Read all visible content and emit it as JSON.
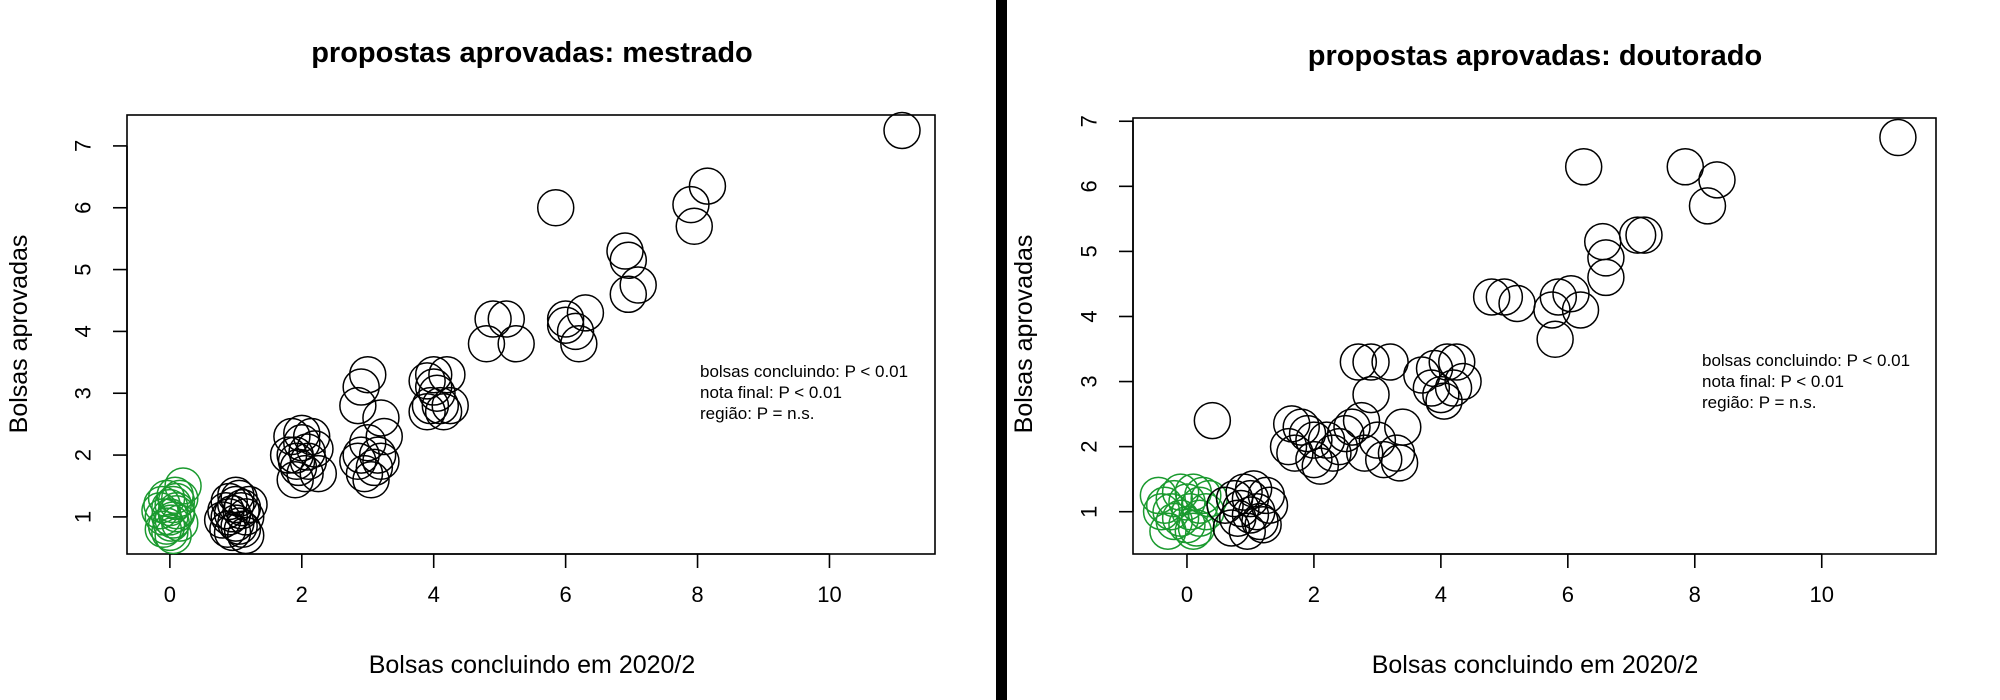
{
  "colors": {
    "group_zero": "#1a9a2e",
    "group_other": "#000000",
    "divider": "#000000"
  },
  "chart_data": [
    {
      "type": "scatter",
      "title": "propostas aprovadas: mestrado",
      "xlabel": "Bolsas concluindo em 2020/2",
      "ylabel": "Bolsas aprovadas",
      "xlim": [
        -0.65,
        11.6
      ],
      "ylim": [
        0.4,
        7.5
      ],
      "xticks": [
        0,
        2,
        4,
        6,
        8,
        10
      ],
      "xtick_labels": [
        "0",
        "2",
        "4",
        "6",
        "8",
        "10"
      ],
      "yticks": [
        1,
        2,
        3,
        4,
        5,
        6,
        7
      ],
      "ytick_labels": [
        "1",
        "2",
        "3",
        "4",
        "5",
        "6",
        "7"
      ],
      "grid": false,
      "annotations": [
        "bolsas concluindo: P < 0.01",
        "nota final: P < 0.01",
        "região: P = n.s."
      ],
      "series": [
        {
          "color": "green",
          "points": [
            [
              0,
              1.0
            ],
            [
              0.05,
              1.2
            ],
            [
              -0.1,
              0.8
            ],
            [
              0.1,
              1.05
            ],
            [
              -0.05,
              1.3
            ],
            [
              0.15,
              0.9
            ],
            [
              0,
              0.75
            ],
            [
              -0.15,
              1.1
            ],
            [
              0.05,
              0.95
            ],
            [
              0.1,
              1.25
            ],
            [
              -0.1,
              1.0
            ],
            [
              0,
              1.15
            ],
            [
              0.15,
              1.3
            ],
            [
              0.2,
              1.5
            ],
            [
              -0.05,
              0.85
            ],
            [
              0.05,
              0.7
            ],
            [
              0.1,
              1.1
            ],
            [
              -0.12,
              1.2
            ],
            [
              0.02,
              0.9
            ],
            [
              0.08,
              1.35
            ]
          ]
        },
        {
          "color": "black",
          "points": [
            [
              0.9,
              1.0
            ],
            [
              1.0,
              1.2
            ],
            [
              1.1,
              0.8
            ],
            [
              0.95,
              0.75
            ],
            [
              1.05,
              1.3
            ],
            [
              0.85,
              1.1
            ],
            [
              1.15,
              1.0
            ],
            [
              1.0,
              0.9
            ],
            [
              0.9,
              1.25
            ],
            [
              1.1,
              1.15
            ],
            [
              1.05,
              0.85
            ],
            [
              0.95,
              1.05
            ],
            [
              1.2,
              1.2
            ],
            [
              0.8,
              0.95
            ],
            [
              1.0,
              1.35
            ],
            [
              1.15,
              0.7
            ],
            [
              0.88,
              0.8
            ],
            [
              1.08,
              1.1
            ],
            [
              1.9,
              2.0
            ],
            [
              2.0,
              2.2
            ],
            [
              1.95,
              1.8
            ],
            [
              2.1,
              1.9
            ],
            [
              1.85,
              2.3
            ],
            [
              2.05,
              1.7
            ],
            [
              2.2,
              2.1
            ],
            [
              1.9,
              1.6
            ],
            [
              2.15,
              2.3
            ],
            [
              1.8,
              2.0
            ],
            [
              2.25,
              1.7
            ],
            [
              2.0,
              2.35
            ],
            [
              1.92,
              1.9
            ],
            [
              2.08,
              2.05
            ],
            [
              2.9,
              3.1
            ],
            [
              3.0,
              3.3
            ],
            [
              2.85,
              2.8
            ],
            [
              3.2,
              2.6
            ],
            [
              2.9,
              2.0
            ],
            [
              3.1,
              1.8
            ],
            [
              3.0,
              2.2
            ],
            [
              2.95,
              1.7
            ],
            [
              3.15,
              2.0
            ],
            [
              2.85,
              1.9
            ],
            [
              3.25,
              2.3
            ],
            [
              3.05,
              1.6
            ],
            [
              3.2,
              1.9
            ],
            [
              3.9,
              3.2
            ],
            [
              4.0,
              3.3
            ],
            [
              4.2,
              3.3
            ],
            [
              3.95,
              2.8
            ],
            [
              4.05,
              3.0
            ],
            [
              4.1,
              2.8
            ],
            [
              3.9,
              2.7
            ],
            [
              4.25,
              2.8
            ],
            [
              4.15,
              2.7
            ],
            [
              4.0,
              3.1
            ],
            [
              4.8,
              3.8
            ],
            [
              4.9,
              4.2
            ],
            [
              5.1,
              4.2
            ],
            [
              5.25,
              3.8
            ],
            [
              5.85,
              6.0
            ],
            [
              6.0,
              4.2
            ],
            [
              6.15,
              4.0
            ],
            [
              6.0,
              4.1
            ],
            [
              6.3,
              4.3
            ],
            [
              6.2,
              3.8
            ],
            [
              6.9,
              5.3
            ],
            [
              6.95,
              5.15
            ],
            [
              6.95,
              4.6
            ],
            [
              7.1,
              4.75
            ],
            [
              7.9,
              6.05
            ],
            [
              7.95,
              5.7
            ],
            [
              8.15,
              6.35
            ],
            [
              11.1,
              7.25
            ]
          ]
        }
      ]
    },
    {
      "type": "scatter",
      "title": "propostas aprovadas: doutorado",
      "xlabel": "Bolsas concluindo em 2020/2",
      "ylabel": "Bolsas aprovadas",
      "xlim": [
        -0.85,
        11.8
      ],
      "ylim": [
        0.35,
        7.05
      ],
      "xticks": [
        0,
        2,
        4,
        6,
        8,
        10
      ],
      "xtick_labels": [
        "0",
        "2",
        "4",
        "6",
        "8",
        "10"
      ],
      "yticks": [
        1,
        2,
        3,
        4,
        5,
        6,
        7
      ],
      "ytick_labels": [
        "1",
        "2",
        "3",
        "4",
        "5",
        "6",
        "7"
      ],
      "grid": false,
      "annotations": [
        "bolsas concluindo: P < 0.01",
        "nota final: P < 0.01",
        "região: P = n.s."
      ],
      "series": [
        {
          "color": "green",
          "points": [
            [
              -0.4,
              1.0
            ],
            [
              -0.2,
              1.2
            ],
            [
              0,
              0.8
            ],
            [
              0.2,
              1.1
            ],
            [
              -0.3,
              0.7
            ],
            [
              0.1,
              1.3
            ],
            [
              -0.1,
              0.9
            ],
            [
              0.3,
              1.0
            ],
            [
              -0.45,
              1.25
            ],
            [
              0.15,
              0.75
            ],
            [
              0,
              1.15
            ],
            [
              -0.2,
              0.85
            ],
            [
              0.25,
              1.25
            ],
            [
              -0.35,
              1.1
            ],
            [
              0.05,
              1.0
            ],
            [
              -0.1,
              1.3
            ],
            [
              0.2,
              0.9
            ],
            [
              -0.25,
              1.0
            ],
            [
              0.1,
              0.7
            ],
            [
              0.35,
              1.2
            ]
          ]
        },
        {
          "color": "black",
          "points": [
            [
              0.4,
              2.4
            ],
            [
              0.6,
              1.1
            ],
            [
              0.8,
              0.9
            ],
            [
              1.0,
              1.2
            ],
            [
              1.2,
              0.8
            ],
            [
              0.9,
              1.3
            ],
            [
              1.1,
              1.0
            ],
            [
              0.7,
              0.75
            ],
            [
              1.3,
              1.1
            ],
            [
              0.95,
              0.7
            ],
            [
              1.05,
              1.35
            ],
            [
              0.85,
              1.05
            ],
            [
              1.25,
              1.25
            ],
            [
              1.15,
              0.85
            ],
            [
              0.75,
              1.2
            ],
            [
              1.0,
              0.95
            ],
            [
              1.6,
              2.0
            ],
            [
              1.8,
              2.3
            ],
            [
              2.0,
              1.8
            ],
            [
              2.2,
              2.1
            ],
            [
              1.7,
              1.9
            ],
            [
              2.4,
              2.0
            ],
            [
              1.9,
              2.2
            ],
            [
              2.1,
              1.7
            ],
            [
              2.6,
              2.3
            ],
            [
              2.3,
              1.9
            ],
            [
              1.65,
              2.35
            ],
            [
              2.5,
              2.2
            ],
            [
              2.0,
              2.1
            ],
            [
              2.7,
              3.3
            ],
            [
              2.9,
              3.3
            ],
            [
              3.2,
              3.3
            ],
            [
              2.9,
              2.8
            ],
            [
              2.8,
              1.9
            ],
            [
              3.0,
              2.1
            ],
            [
              3.3,
              1.9
            ],
            [
              3.4,
              2.3
            ],
            [
              3.1,
              1.8
            ],
            [
              3.35,
              1.75
            ],
            [
              2.75,
              2.4
            ],
            [
              3.7,
              3.1
            ],
            [
              3.9,
              3.2
            ],
            [
              4.1,
              3.3
            ],
            [
              4.25,
              3.3
            ],
            [
              3.85,
              2.9
            ],
            [
              4.0,
              2.8
            ],
            [
              4.2,
              2.9
            ],
            [
              4.35,
              3.0
            ],
            [
              4.05,
              2.7
            ],
            [
              4.8,
              4.3
            ],
            [
              5.0,
              4.3
            ],
            [
              5.2,
              4.2
            ],
            [
              5.75,
              4.1
            ],
            [
              5.85,
              4.3
            ],
            [
              5.8,
              3.65
            ],
            [
              6.05,
              4.35
            ],
            [
              6.2,
              4.1
            ],
            [
              6.25,
              6.3
            ],
            [
              6.55,
              5.15
            ],
            [
              6.6,
              4.9
            ],
            [
              6.6,
              4.6
            ],
            [
              7.1,
              5.25
            ],
            [
              7.2,
              5.25
            ],
            [
              7.85,
              6.3
            ],
            [
              8.2,
              5.7
            ],
            [
              8.35,
              6.1
            ],
            [
              11.2,
              6.75
            ]
          ]
        }
      ]
    }
  ]
}
